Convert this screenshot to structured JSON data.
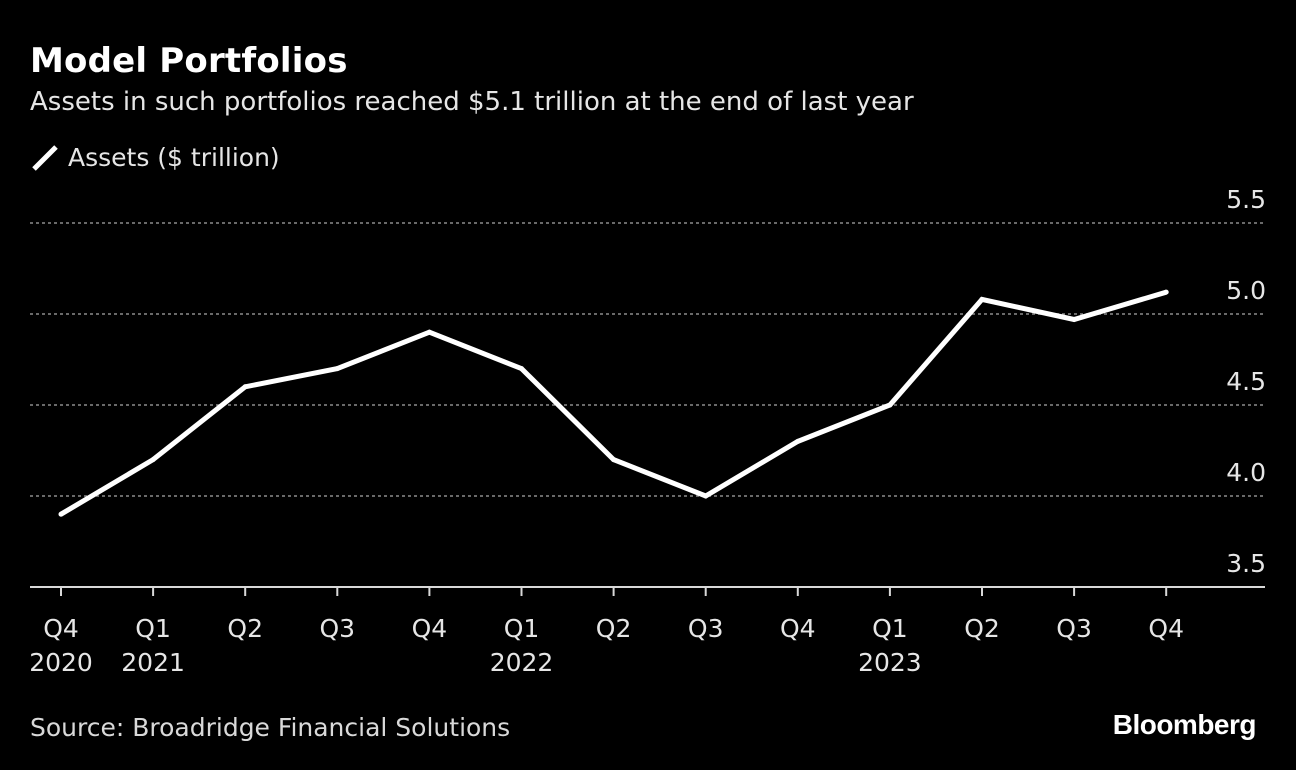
{
  "header": {
    "title": "Model Portfolios",
    "subtitle": "Assets in such portfolios reached $5.1 trillion at the end of last year"
  },
  "footer": {
    "source": "Source: Broadridge Financial Solutions",
    "brand": "Bloomberg"
  },
  "colors": {
    "background": "#000000",
    "line": "#ffffff",
    "grid": "#8c8c8c",
    "text": "#ffffff"
  },
  "chart_data": {
    "type": "line",
    "title": "Model Portfolios",
    "subtitle": "Assets in such portfolios reached $5.1 trillion at the end of last year",
    "xlabel": "",
    "ylabel": "",
    "categories": [
      {
        "quarter": "Q4",
        "year": "2020"
      },
      {
        "quarter": "Q1",
        "year": "2021"
      },
      {
        "quarter": "Q2",
        "year": ""
      },
      {
        "quarter": "Q3",
        "year": ""
      },
      {
        "quarter": "Q4",
        "year": ""
      },
      {
        "quarter": "Q1",
        "year": "2022"
      },
      {
        "quarter": "Q2",
        "year": ""
      },
      {
        "quarter": "Q3",
        "year": ""
      },
      {
        "quarter": "Q4",
        "year": ""
      },
      {
        "quarter": "Q1",
        "year": "2023"
      },
      {
        "quarter": "Q2",
        "year": ""
      },
      {
        "quarter": "Q3",
        "year": ""
      },
      {
        "quarter": "Q4",
        "year": ""
      }
    ],
    "series": [
      {
        "name": "Assets ($ trillion)",
        "color": "#ffffff",
        "values": [
          3.9,
          4.2,
          4.6,
          4.7,
          4.9,
          4.7,
          4.2,
          4.0,
          4.3,
          4.5,
          5.08,
          4.97,
          5.12
        ]
      }
    ],
    "ylim": [
      3.5,
      5.5
    ],
    "yticks": [
      "3.5",
      "4.0",
      "4.5",
      "5.0",
      "5.5"
    ],
    "y_axis_position": "right",
    "grid": true,
    "legend_position": "top-left"
  }
}
